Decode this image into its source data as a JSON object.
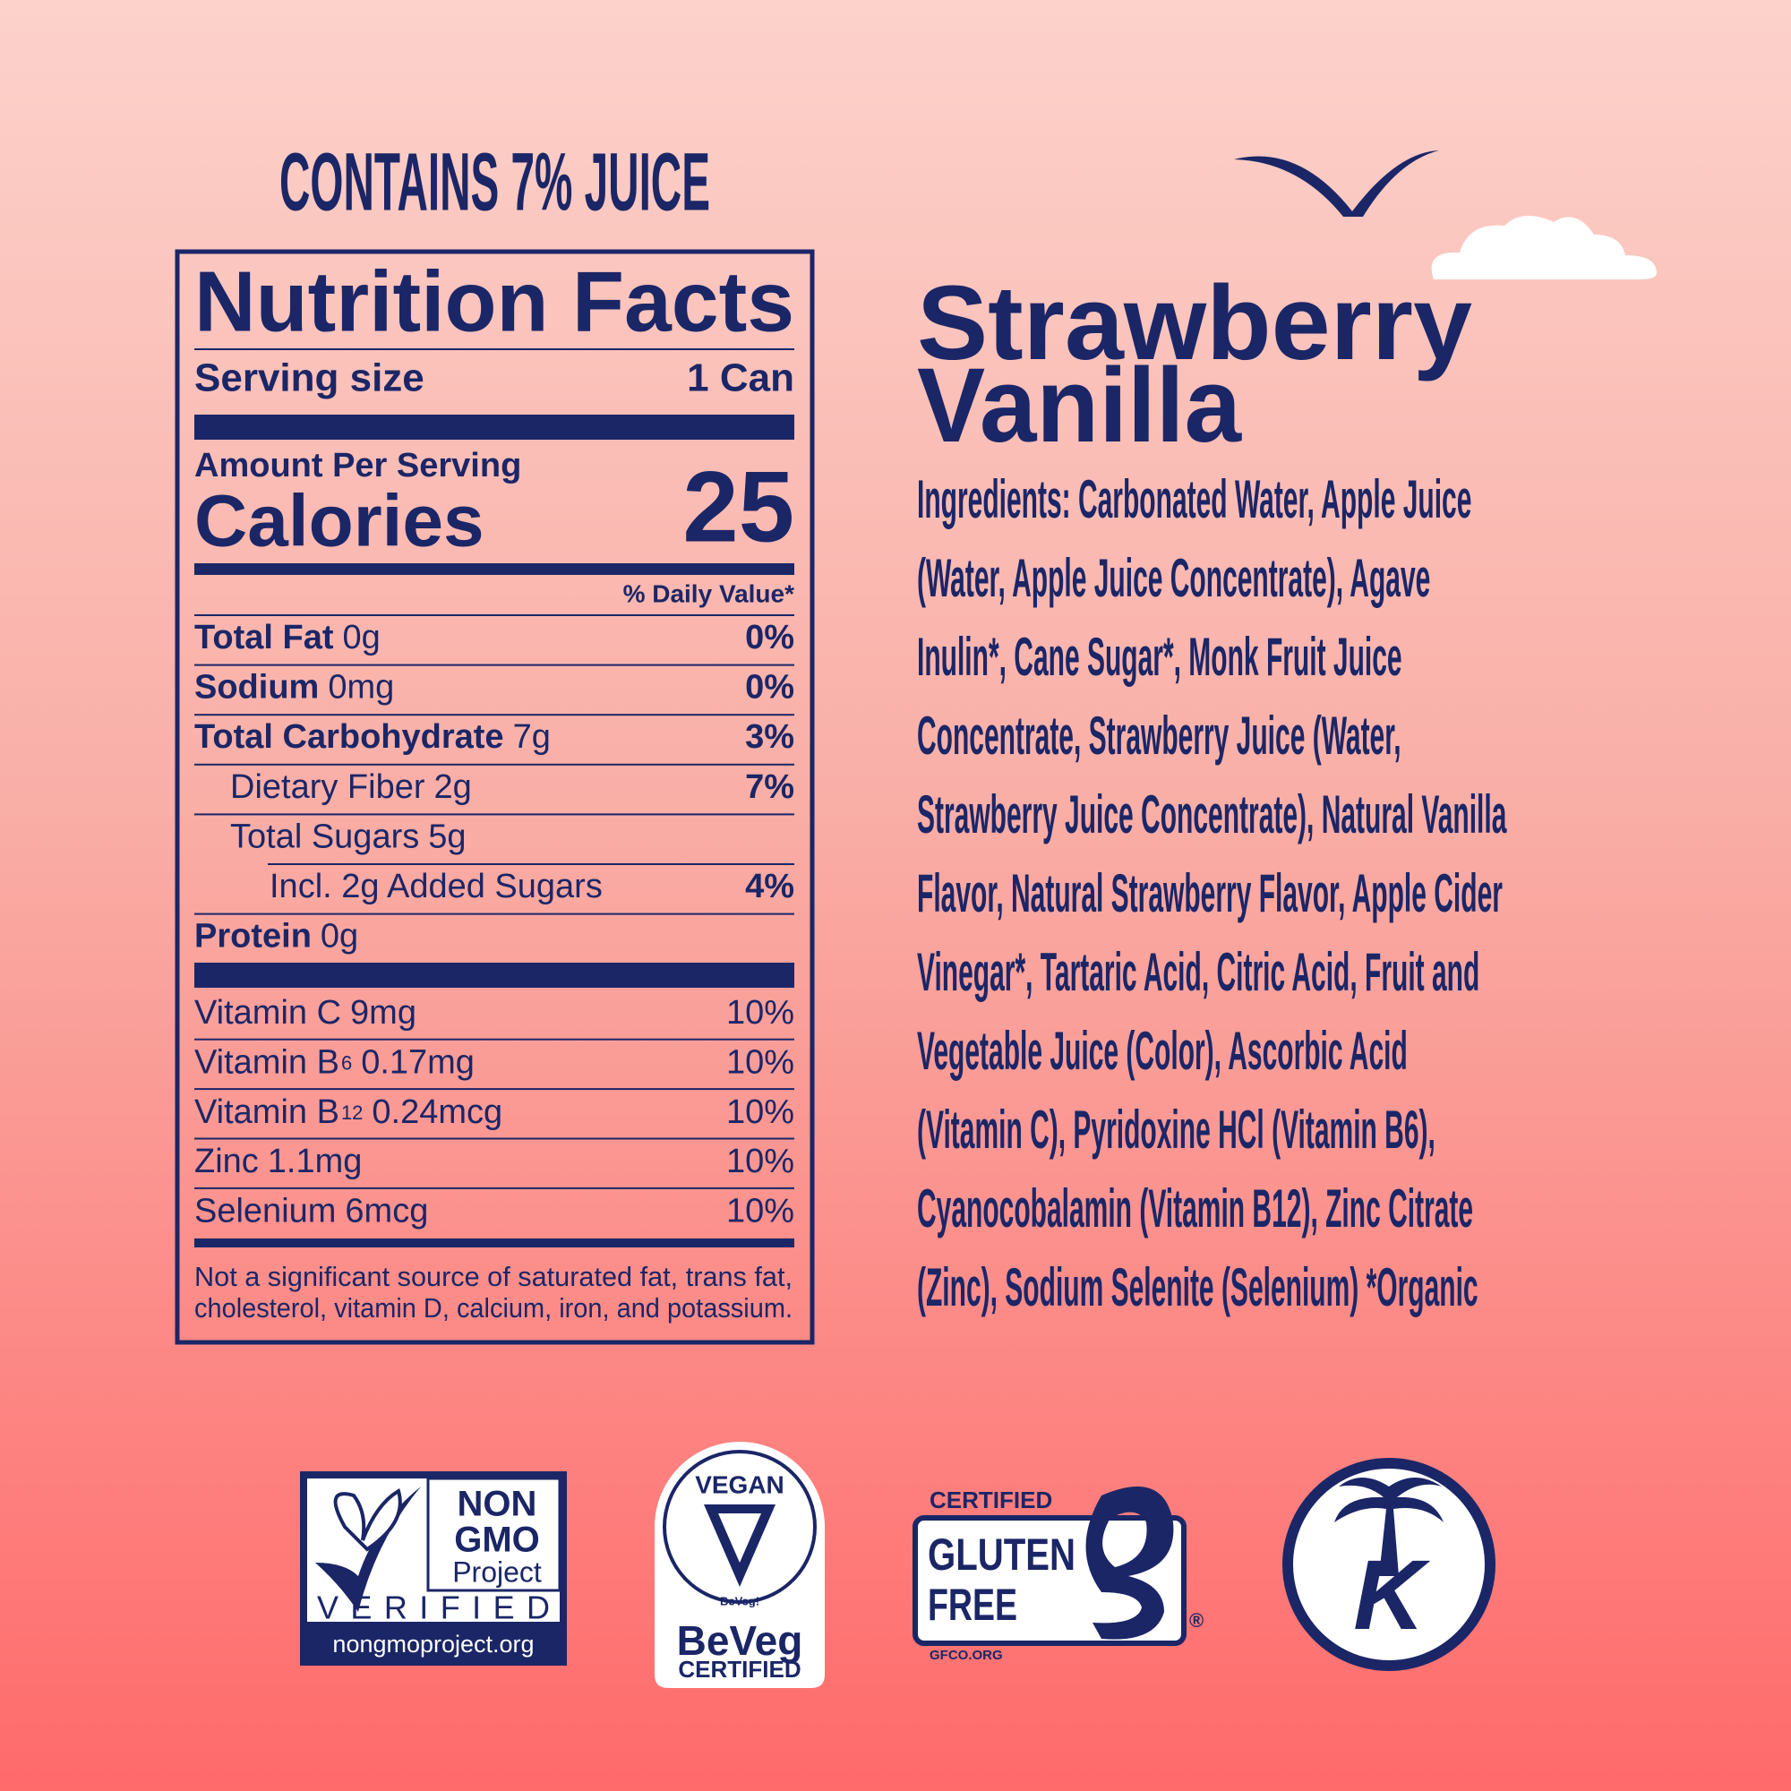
{
  "juice_note": "CONTAINS 7% JUICE",
  "nutrition_facts": {
    "title": "Nutrition Facts",
    "serving_size_label": "Serving size",
    "serving_size": "1 Can",
    "amount_per_serving": "Amount Per Serving",
    "calories_label": "Calories",
    "calories": "25",
    "daily_value_header": "% Daily Value*",
    "nutrients": [
      {
        "name": "Total Fat",
        "amount": "0g",
        "dv": "0%"
      },
      {
        "name": "Sodium",
        "amount": "0mg",
        "dv": "0%"
      },
      {
        "name": "Total Carbohydrate",
        "amount": "7g",
        "dv": "3%",
        "sub": [
          {
            "name": "Dietary Fiber",
            "amount": "2g",
            "dv": "7%"
          },
          {
            "name": "Total Sugars",
            "amount": "5g",
            "sub": [
              {
                "name": "Incl. 2g Added Sugars",
                "dv": "4%"
              }
            ]
          }
        ]
      },
      {
        "name": "Protein",
        "amount": "0g"
      }
    ],
    "vitamins": [
      {
        "name": "Vitamin C",
        "amount": "9mg",
        "dv": "10%"
      },
      {
        "name": "Vitamin B",
        "subscript": "6",
        "amount": "0.17mg",
        "dv": "10%"
      },
      {
        "name": "Vitamin B",
        "subscript": "12",
        "amount": "0.24mcg",
        "dv": "10%"
      },
      {
        "name": "Zinc",
        "amount": "1.1mg",
        "dv": "10%"
      },
      {
        "name": "Selenium",
        "amount": "6mcg",
        "dv": "10%"
      }
    ],
    "footnote": [
      "Not a significant source of saturated fat, trans fat,",
      "cholesterol, vitamin D, calcium, iron, and potassium."
    ]
  },
  "product": {
    "name": [
      "Strawberry",
      "Vanilla"
    ],
    "ingredients": [
      "Ingredients: Carbonated Water, Apple Juice",
      "(Water, Apple Juice Concentrate), Agave",
      "Inulin*, Cane Sugar*, Monk Fruit Juice",
      "Concentrate, Strawberry Juice (Water,",
      "Strawberry Juice Concentrate), Natural Vanilla",
      "Flavor, Natural Strawberry Flavor, Apple Cider",
      "Vinegar*, Tartaric Acid, Citric Acid, Fruit and",
      "Vegetable Juice (Color), Ascorbic Acid",
      "(Vitamin C), Pyridoxine HCl (Vitamin B6),",
      "Cyanocobalamin (Vitamin B12), Zinc Citrate",
      "(Zinc), Sodium Selenite (Selenium)  *Organic"
    ]
  },
  "badges": {
    "non_gmo": {
      "lines": [
        "NON",
        "GMO",
        "Project"
      ],
      "verified": "VERIFIED",
      "url": "nongmoproject.org"
    },
    "vegan": {
      "title": "VEGAN",
      "small": "BeVeg!",
      "brand": "BeVeg",
      "certified": "CERTIFIED"
    },
    "gluten_free": {
      "certified": "CERTIFIED",
      "lines": [
        "GLUTEN",
        "FREE"
      ],
      "registered": "®",
      "url": "GFCO.ORG"
    },
    "kosher": {
      "letter": "K"
    }
  }
}
